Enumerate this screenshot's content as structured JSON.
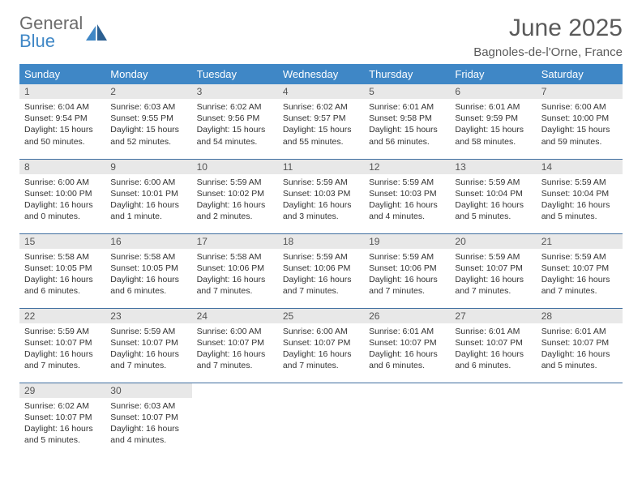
{
  "logo": {
    "word1": "General",
    "word2": "Blue"
  },
  "title": "June 2025",
  "location": "Bagnoles-de-l'Orne, France",
  "colors": {
    "header_bg": "#3f87c6",
    "header_text": "#ffffff",
    "daynum_bg": "#e8e8e8",
    "border": "#3f6ea0",
    "text": "#333333",
    "title_text": "#5a5a5a",
    "logo_gray": "#6b6b6b",
    "logo_blue": "#3f87c6"
  },
  "weekdays": [
    "Sunday",
    "Monday",
    "Tuesday",
    "Wednesday",
    "Thursday",
    "Friday",
    "Saturday"
  ],
  "weeks": [
    [
      {
        "d": "1",
        "sr": "6:04 AM",
        "ss": "9:54 PM",
        "dl": "15 hours and 50 minutes."
      },
      {
        "d": "2",
        "sr": "6:03 AM",
        "ss": "9:55 PM",
        "dl": "15 hours and 52 minutes."
      },
      {
        "d": "3",
        "sr": "6:02 AM",
        "ss": "9:56 PM",
        "dl": "15 hours and 54 minutes."
      },
      {
        "d": "4",
        "sr": "6:02 AM",
        "ss": "9:57 PM",
        "dl": "15 hours and 55 minutes."
      },
      {
        "d": "5",
        "sr": "6:01 AM",
        "ss": "9:58 PM",
        "dl": "15 hours and 56 minutes."
      },
      {
        "d": "6",
        "sr": "6:01 AM",
        "ss": "9:59 PM",
        "dl": "15 hours and 58 minutes."
      },
      {
        "d": "7",
        "sr": "6:00 AM",
        "ss": "10:00 PM",
        "dl": "15 hours and 59 minutes."
      }
    ],
    [
      {
        "d": "8",
        "sr": "6:00 AM",
        "ss": "10:00 PM",
        "dl": "16 hours and 0 minutes."
      },
      {
        "d": "9",
        "sr": "6:00 AM",
        "ss": "10:01 PM",
        "dl": "16 hours and 1 minute."
      },
      {
        "d": "10",
        "sr": "5:59 AM",
        "ss": "10:02 PM",
        "dl": "16 hours and 2 minutes."
      },
      {
        "d": "11",
        "sr": "5:59 AM",
        "ss": "10:03 PM",
        "dl": "16 hours and 3 minutes."
      },
      {
        "d": "12",
        "sr": "5:59 AM",
        "ss": "10:03 PM",
        "dl": "16 hours and 4 minutes."
      },
      {
        "d": "13",
        "sr": "5:59 AM",
        "ss": "10:04 PM",
        "dl": "16 hours and 5 minutes."
      },
      {
        "d": "14",
        "sr": "5:59 AM",
        "ss": "10:04 PM",
        "dl": "16 hours and 5 minutes."
      }
    ],
    [
      {
        "d": "15",
        "sr": "5:58 AM",
        "ss": "10:05 PM",
        "dl": "16 hours and 6 minutes."
      },
      {
        "d": "16",
        "sr": "5:58 AM",
        "ss": "10:05 PM",
        "dl": "16 hours and 6 minutes."
      },
      {
        "d": "17",
        "sr": "5:58 AM",
        "ss": "10:06 PM",
        "dl": "16 hours and 7 minutes."
      },
      {
        "d": "18",
        "sr": "5:59 AM",
        "ss": "10:06 PM",
        "dl": "16 hours and 7 minutes."
      },
      {
        "d": "19",
        "sr": "5:59 AM",
        "ss": "10:06 PM",
        "dl": "16 hours and 7 minutes."
      },
      {
        "d": "20",
        "sr": "5:59 AM",
        "ss": "10:07 PM",
        "dl": "16 hours and 7 minutes."
      },
      {
        "d": "21",
        "sr": "5:59 AM",
        "ss": "10:07 PM",
        "dl": "16 hours and 7 minutes."
      }
    ],
    [
      {
        "d": "22",
        "sr": "5:59 AM",
        "ss": "10:07 PM",
        "dl": "16 hours and 7 minutes."
      },
      {
        "d": "23",
        "sr": "5:59 AM",
        "ss": "10:07 PM",
        "dl": "16 hours and 7 minutes."
      },
      {
        "d": "24",
        "sr": "6:00 AM",
        "ss": "10:07 PM",
        "dl": "16 hours and 7 minutes."
      },
      {
        "d": "25",
        "sr": "6:00 AM",
        "ss": "10:07 PM",
        "dl": "16 hours and 7 minutes."
      },
      {
        "d": "26",
        "sr": "6:01 AM",
        "ss": "10:07 PM",
        "dl": "16 hours and 6 minutes."
      },
      {
        "d": "27",
        "sr": "6:01 AM",
        "ss": "10:07 PM",
        "dl": "16 hours and 6 minutes."
      },
      {
        "d": "28",
        "sr": "6:01 AM",
        "ss": "10:07 PM",
        "dl": "16 hours and 5 minutes."
      }
    ],
    [
      {
        "d": "29",
        "sr": "6:02 AM",
        "ss": "10:07 PM",
        "dl": "16 hours and 5 minutes."
      },
      {
        "d": "30",
        "sr": "6:03 AM",
        "ss": "10:07 PM",
        "dl": "16 hours and 4 minutes."
      },
      null,
      null,
      null,
      null,
      null
    ]
  ],
  "labels": {
    "sunrise": "Sunrise:",
    "sunset": "Sunset:",
    "daylight": "Daylight:"
  }
}
